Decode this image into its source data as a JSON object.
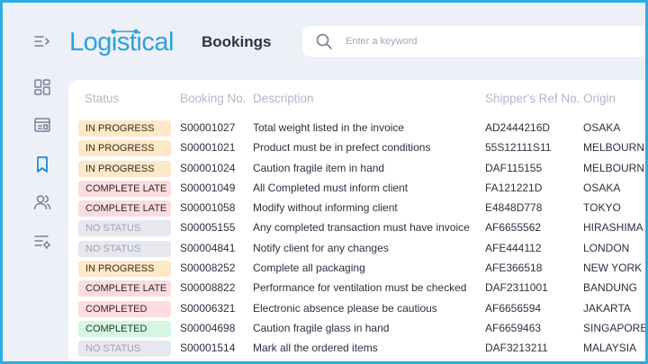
{
  "app": {
    "logo": "Logistical",
    "page_title": "Bookings"
  },
  "sidebar": {
    "icons": [
      {
        "name": "collapse-menu-icon"
      },
      {
        "name": "dashboard-icon"
      },
      {
        "name": "invoice-icon"
      },
      {
        "name": "bookmark-icon",
        "active": true
      },
      {
        "name": "users-icon"
      },
      {
        "name": "settings-list-icon"
      }
    ]
  },
  "search": {
    "placeholder": "Enter a keyword",
    "value": ""
  },
  "table": {
    "columns": [
      "Status",
      "Booking No.",
      "Description",
      "Shipper's Ref No.",
      "Origin"
    ],
    "rows": [
      {
        "status": "IN PROGRESS",
        "status_type": "progress",
        "booking": "S00001027",
        "description": "Total weight listed in the invoice",
        "ref": "AD2444216D",
        "origin": "OSAKA"
      },
      {
        "status": "IN PROGRESS",
        "status_type": "progress",
        "booking": "S00001021",
        "description": "Product must be in prefect conditions",
        "ref": "55S12111S11",
        "origin": "MELBOURNE"
      },
      {
        "status": "IN PROGRESS",
        "status_type": "progress",
        "booking": "S00001024",
        "description": "Caution fragile item in hand",
        "ref": "DAF115155",
        "origin": "MELBOURNE"
      },
      {
        "status": "COMPLETE LATE",
        "status_type": "late",
        "booking": "S00001049",
        "description": "All Completed must inform client",
        "ref": "FA121221D",
        "origin": "OSAKA"
      },
      {
        "status": "COMPLETE LATE",
        "status_type": "late",
        "booking": "S00001058",
        "description": "Modify without informing client",
        "ref": "E4848D778",
        "origin": "TOKYO"
      },
      {
        "status": "NO STATUS",
        "status_type": "none",
        "booking": "S00005155",
        "description": "Any completed transaction must have invoice",
        "ref": "AF6655562",
        "origin": "HIRASHIMA"
      },
      {
        "status": "NO STATUS",
        "status_type": "none",
        "booking": "S00004841",
        "description": "Notify client for any changes",
        "ref": "AFE444112",
        "origin": "LONDON"
      },
      {
        "status": "IN PROGRESS",
        "status_type": "progress",
        "booking": "S00008252",
        "description": "Complete all packaging",
        "ref": "AFE366518",
        "origin": "NEW YORK"
      },
      {
        "status": "COMPLETE LATE",
        "status_type": "late",
        "booking": "S00008822",
        "description": "Performance for ventilation must be checked",
        "ref": "DAF2311001",
        "origin": "BANDUNG"
      },
      {
        "status": "COMPLETED",
        "status_type": "completed-red",
        "booking": "S00006321",
        "description": "Electronic absence please be cautious",
        "ref": "AF6656594",
        "origin": "JAKARTA"
      },
      {
        "status": "COMPLETED",
        "status_type": "completed",
        "booking": "S00004698",
        "description": "Caution fragile glass in hand",
        "ref": "AF6659463",
        "origin": "SINGAPORE"
      },
      {
        "status": "NO STATUS",
        "status_type": "none",
        "booking": "S00001514",
        "description": "Mark all the ordered items",
        "ref": "DAF3213211",
        "origin": "MALAYSIA"
      }
    ]
  },
  "colors": {
    "accent": "#2aa2dd",
    "border": "#2aaee0",
    "background": "#eef0f8"
  }
}
